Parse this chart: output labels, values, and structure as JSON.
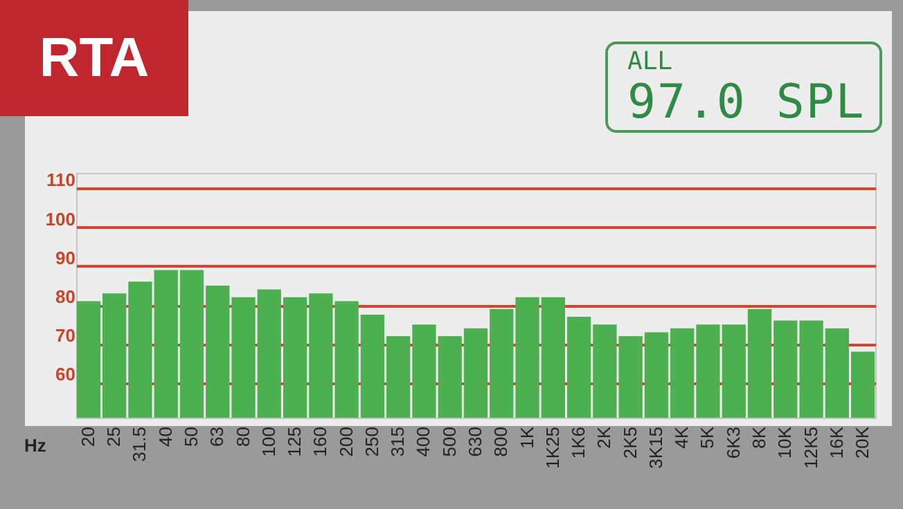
{
  "chart_data": {
    "type": "bar",
    "title": "RTA",
    "xlabel": "Hz",
    "annotations": [
      "ALL",
      "97.0 SPL"
    ],
    "categories": [
      "20",
      "25",
      "31.5",
      "40",
      "50",
      "63",
      "80",
      "100",
      "125",
      "160",
      "200",
      "250",
      "315",
      "400",
      "500",
      "630",
      "800",
      "1K",
      "1K25",
      "1K6",
      "2K",
      "2K5",
      "3K15",
      "4K",
      "5K",
      "6K3",
      "8K",
      "10K",
      "12K5",
      "16K",
      "20K"
    ],
    "values": [
      81,
      83,
      86,
      89,
      89,
      85,
      82,
      84,
      82,
      83,
      81,
      77.5,
      72,
      75,
      72,
      74,
      79,
      82,
      82,
      77,
      75,
      72,
      73,
      74,
      75,
      75,
      79,
      76,
      76,
      74,
      68
    ],
    "color": "#4caf50",
    "ylim": [
      51,
      114
    ],
    "yticks": [
      60,
      70,
      80,
      90,
      100,
      110
    ],
    "grid": true
  }
}
